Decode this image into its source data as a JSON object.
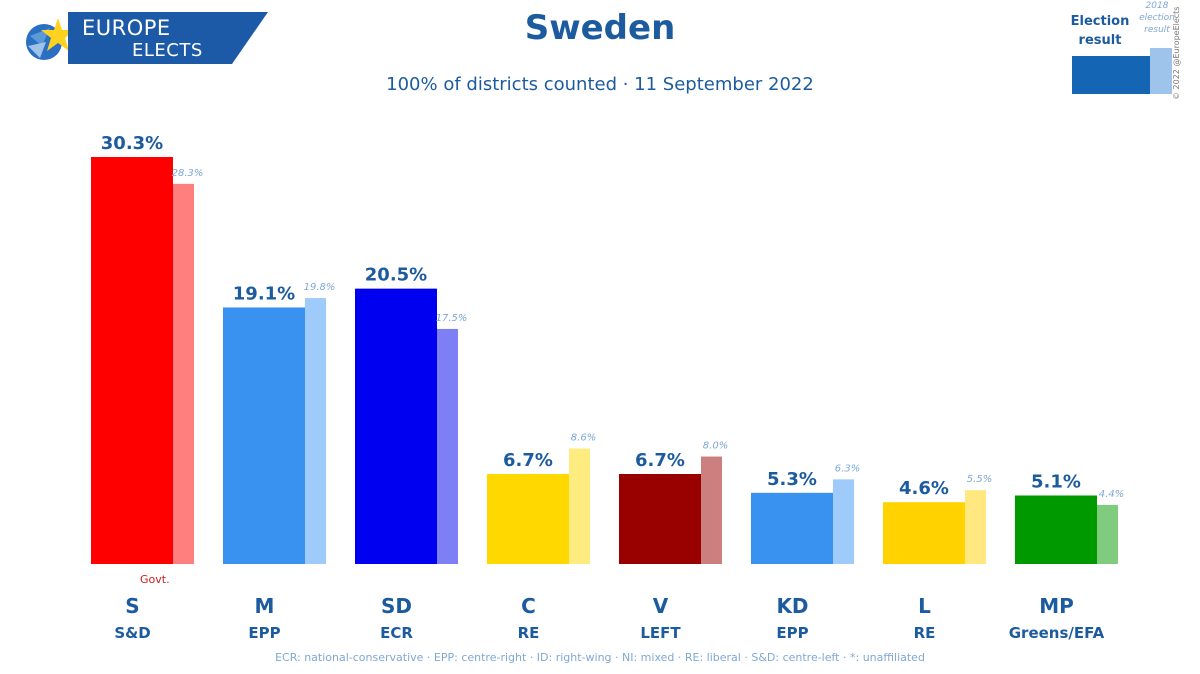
{
  "header": {
    "logo_line1": "EUROPE",
    "logo_line2": "ELECTS",
    "title": "Sweden",
    "subtitle": "100% of districts counted · 11 September 2022"
  },
  "legend": {
    "current_label": "Election result",
    "previous_label": "2018 election result",
    "copyright": "© 2022 @EuropeElects"
  },
  "govt_label": "Govt.",
  "footnote": "ECR: national-conservative · EPP: centre-right · ID: right-wing · NI: mixed · RE: liberal · S&D: centre-left · *: unaffiliated",
  "colors": {
    "text": "#1d5b9f",
    "prev_label": "#7fa8d4"
  },
  "chart_data": {
    "type": "bar",
    "title": "Sweden",
    "subtitle": "100% of districts counted · 11 September 2022",
    "categories": [
      "S",
      "M",
      "SD",
      "C",
      "V",
      "KD",
      "L",
      "MP"
    ],
    "groups": [
      "S&D",
      "EPP",
      "ECR",
      "RE",
      "LEFT",
      "EPP",
      "RE",
      "Greens/EFA"
    ],
    "series": [
      {
        "name": "Election result",
        "values": [
          30.3,
          19.1,
          20.5,
          6.7,
          6.7,
          5.3,
          4.6,
          5.1
        ]
      },
      {
        "name": "2018 election result",
        "values": [
          28.3,
          19.8,
          17.5,
          8.6,
          8.0,
          6.3,
          5.5,
          4.4
        ]
      }
    ],
    "value_labels": [
      "30.3%",
      "19.1%",
      "20.5%",
      "6.7%",
      "6.7%",
      "5.3%",
      "4.6%",
      "5.1%"
    ],
    "prev_labels": [
      "28.3%",
      "19.8%",
      "17.5%",
      "8.6%",
      "8.0%",
      "6.3%",
      "5.5%",
      "4.4%"
    ],
    "bar_colors": [
      "#ff0000",
      "#3a92f0",
      "#0000f0",
      "#ffd800",
      "#990000",
      "#3a92f0",
      "#ffd200",
      "#009900"
    ],
    "prev_colors": [
      "#ff7f7f",
      "#9ecbf9",
      "#7f7ff5",
      "#ffec80",
      "#cc7f7f",
      "#9ecbf9",
      "#ffe880",
      "#7fcc7f"
    ],
    "govt": [
      true,
      false,
      false,
      false,
      false,
      false,
      false,
      false
    ],
    "ylim": [
      0,
      32
    ],
    "grid": false,
    "legend_position": "top-right"
  }
}
